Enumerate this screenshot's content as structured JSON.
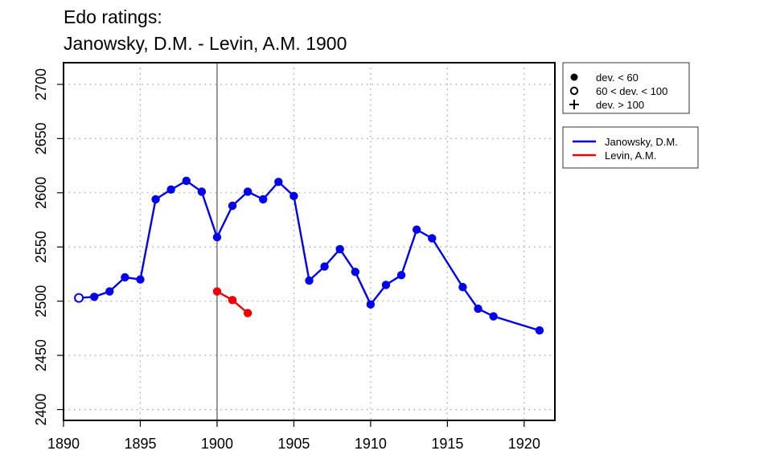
{
  "chart_data": {
    "type": "line",
    "title": "Edo ratings:",
    "subtitle": "Janowsky, D.M. - Levin, A.M. 1900",
    "xlabel": "",
    "ylabel": "",
    "xlim": [
      1890,
      1922
    ],
    "ylim": [
      2390,
      2720
    ],
    "x_ticks": [
      1890,
      1895,
      1900,
      1905,
      1910,
      1915,
      1920
    ],
    "y_ticks": [
      2400,
      2450,
      2500,
      2550,
      2600,
      2650,
      2700
    ],
    "grid": true,
    "marker_line_x": 1900,
    "marker_legend": [
      {
        "symbol": "filled-circle",
        "label": "dev. < 60"
      },
      {
        "symbol": "open-circle",
        "label": "60 < dev. < 100"
      },
      {
        "symbol": "plus",
        "label": "dev. > 100"
      }
    ],
    "legend_position": "right",
    "series": [
      {
        "name": "Janowsky, D.M.",
        "color": "#0000ee",
        "points": [
          {
            "x": 1891,
            "y": 2503,
            "marker": "open"
          },
          {
            "x": 1892,
            "y": 2504,
            "marker": "filled"
          },
          {
            "x": 1893,
            "y": 2509,
            "marker": "filled"
          },
          {
            "x": 1894,
            "y": 2522,
            "marker": "filled"
          },
          {
            "x": 1895,
            "y": 2520,
            "marker": "filled"
          },
          {
            "x": 1896,
            "y": 2594,
            "marker": "filled"
          },
          {
            "x": 1897,
            "y": 2603,
            "marker": "filled"
          },
          {
            "x": 1898,
            "y": 2611,
            "marker": "filled"
          },
          {
            "x": 1899,
            "y": 2601,
            "marker": "filled"
          },
          {
            "x": 1900,
            "y": 2559,
            "marker": "filled"
          },
          {
            "x": 1901,
            "y": 2588,
            "marker": "filled"
          },
          {
            "x": 1902,
            "y": 2601,
            "marker": "filled"
          },
          {
            "x": 1903,
            "y": 2594,
            "marker": "filled"
          },
          {
            "x": 1904,
            "y": 2610,
            "marker": "filled"
          },
          {
            "x": 1905,
            "y": 2597,
            "marker": "filled"
          },
          {
            "x": 1906,
            "y": 2519,
            "marker": "filled"
          },
          {
            "x": 1907,
            "y": 2532,
            "marker": "filled"
          },
          {
            "x": 1908,
            "y": 2548,
            "marker": "filled"
          },
          {
            "x": 1909,
            "y": 2527,
            "marker": "filled"
          },
          {
            "x": 1910,
            "y": 2497,
            "marker": "filled"
          },
          {
            "x": 1911,
            "y": 2515,
            "marker": "filled"
          },
          {
            "x": 1912,
            "y": 2524,
            "marker": "filled"
          },
          {
            "x": 1913,
            "y": 2566,
            "marker": "filled"
          },
          {
            "x": 1914,
            "y": 2558,
            "marker": "filled"
          },
          {
            "x": 1916,
            "y": 2513,
            "marker": "filled"
          },
          {
            "x": 1917,
            "y": 2493,
            "marker": "filled"
          },
          {
            "x": 1918,
            "y": 2486,
            "marker": "filled"
          },
          {
            "x": 1921,
            "y": 2473,
            "marker": "filled"
          }
        ]
      },
      {
        "name": "Levin, A.M.",
        "color": "#ee0000",
        "points": [
          {
            "x": 1900,
            "y": 2509,
            "marker": "filled"
          },
          {
            "x": 1901,
            "y": 2501,
            "marker": "filled"
          },
          {
            "x": 1902,
            "y": 2489,
            "marker": "filled"
          }
        ]
      }
    ]
  }
}
